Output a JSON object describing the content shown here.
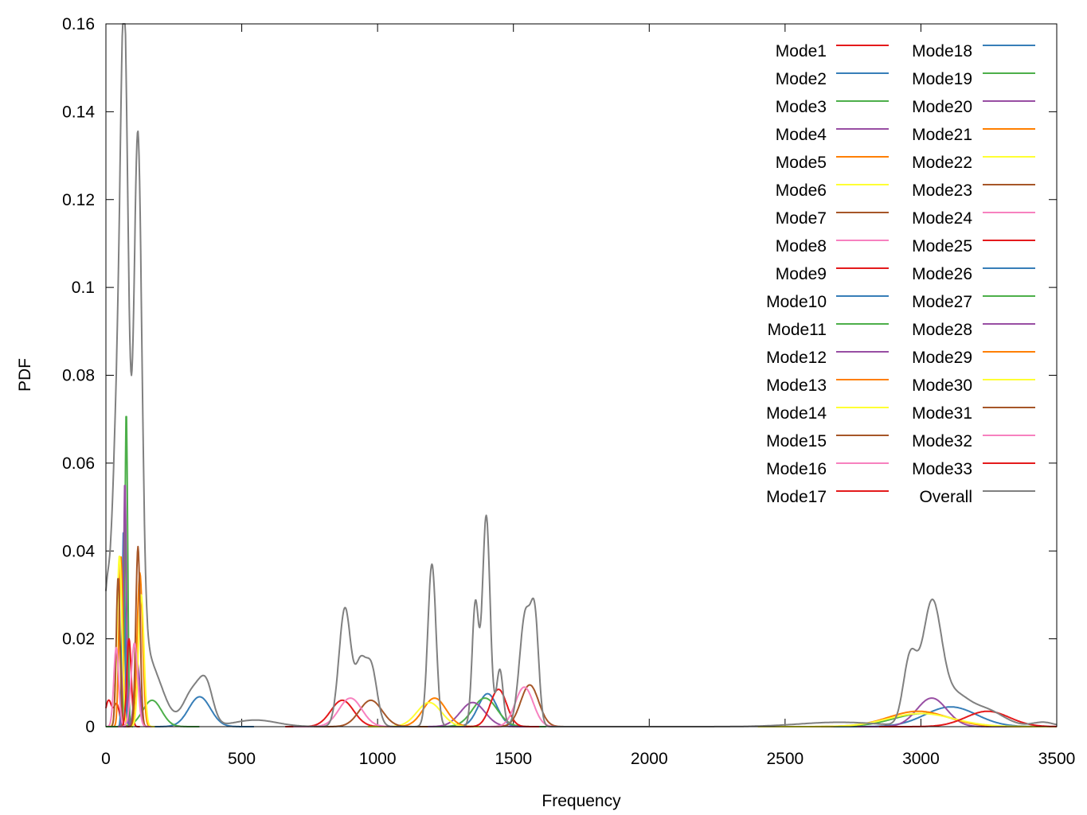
{
  "chart_data": {
    "type": "line",
    "xlabel": "Frequency",
    "ylabel": "PDF",
    "xlim": [
      0,
      3500
    ],
    "ylim": [
      0,
      0.16
    ],
    "xticks": [
      "0",
      "500",
      "1000",
      "1500",
      "2000",
      "2500",
      "3000",
      "3500"
    ],
    "yticks": [
      "0",
      "0.02",
      "0.04",
      "0.06",
      "0.08",
      "0.1",
      "0.12",
      "0.14",
      "0.16"
    ],
    "grid": false,
    "legend_position": "top-right",
    "legend_columns": 2,
    "series": [
      {
        "name": "Mode1",
        "color": "#e41a1c",
        "peaks": [
          [
            10,
            0.006,
            12
          ],
          [
            40,
            0.005,
            10
          ]
        ]
      },
      {
        "name": "Mode2",
        "color": "#377eb8",
        "peaks": [
          [
            65,
            0.045,
            5
          ]
        ]
      },
      {
        "name": "Mode3",
        "color": "#4daf4a",
        "peaks": [
          [
            75,
            0.072,
            5
          ]
        ]
      },
      {
        "name": "Mode4",
        "color": "#984ea3",
        "peaks": [
          [
            70,
            0.056,
            5
          ]
        ]
      },
      {
        "name": "Mode5",
        "color": "#ff7f00",
        "peaks": [
          [
            55,
            0.039,
            7
          ]
        ]
      },
      {
        "name": "Mode6",
        "color": "#ffff33",
        "peaks": [
          [
            50,
            0.039,
            9
          ]
        ]
      },
      {
        "name": "Mode7",
        "color": "#a65628",
        "peaks": [
          [
            45,
            0.034,
            7
          ]
        ]
      },
      {
        "name": "Mode8",
        "color": "#f781bf",
        "peaks": [
          [
            38,
            0.018,
            9
          ]
        ]
      },
      {
        "name": "Mode9",
        "color": "#e41a1c",
        "peaks": [
          [
            85,
            0.02,
            8
          ]
        ]
      },
      {
        "name": "Mode10",
        "color": "#377eb8",
        "peaks": [
          [
            345,
            0.0068,
            40
          ]
        ]
      },
      {
        "name": "Mode11",
        "color": "#4daf4a",
        "peaks": [
          [
            170,
            0.006,
            35
          ]
        ]
      },
      {
        "name": "Mode12",
        "color": "#984ea3",
        "peaks": [
          [
            115,
            0.015,
            10
          ]
        ]
      },
      {
        "name": "Mode13",
        "color": "#ff7f00",
        "peaks": [
          [
            125,
            0.035,
            10
          ]
        ]
      },
      {
        "name": "Mode14",
        "color": "#ffff33",
        "peaks": [
          [
            130,
            0.03,
            10
          ]
        ]
      },
      {
        "name": "Mode15",
        "color": "#a65628",
        "peaks": [
          [
            118,
            0.041,
            8
          ]
        ]
      },
      {
        "name": "Mode16",
        "color": "#f781bf",
        "peaks": [
          [
            105,
            0.019,
            12
          ]
        ]
      },
      {
        "name": "Mode17",
        "color": "#e41a1c",
        "peaks": [
          [
            870,
            0.006,
            42
          ]
        ]
      },
      {
        "name": "Mode18",
        "color": "#377eb8",
        "peaks": [
          [
            1405,
            0.0075,
            35
          ]
        ]
      },
      {
        "name": "Mode19",
        "color": "#4daf4a",
        "peaks": [
          [
            1395,
            0.0065,
            45
          ]
        ]
      },
      {
        "name": "Mode20",
        "color": "#984ea3",
        "peaks": [
          [
            1350,
            0.0055,
            45
          ]
        ]
      },
      {
        "name": "Mode21",
        "color": "#ff7f00",
        "peaks": [
          [
            1210,
            0.0065,
            42
          ]
        ]
      },
      {
        "name": "Mode22",
        "color": "#ffff33",
        "peaks": [
          [
            1190,
            0.0055,
            45
          ]
        ]
      },
      {
        "name": "Mode23",
        "color": "#a65628",
        "peaks": [
          [
            975,
            0.006,
            42
          ]
        ]
      },
      {
        "name": "Mode24",
        "color": "#f781bf",
        "peaks": [
          [
            900,
            0.0065,
            42
          ]
        ]
      },
      {
        "name": "Mode25",
        "color": "#e41a1c",
        "peaks": [
          [
            1445,
            0.0085,
            30
          ]
        ]
      },
      {
        "name": "Mode26",
        "color": "#377eb8",
        "peaks": [
          [
            3110,
            0.0045,
            95
          ]
        ]
      },
      {
        "name": "Mode27",
        "color": "#4daf4a",
        "peaks": [
          [
            3010,
            0.003,
            110
          ]
        ]
      },
      {
        "name": "Mode28",
        "color": "#984ea3",
        "peaks": [
          [
            3040,
            0.0065,
            55
          ]
        ]
      },
      {
        "name": "Mode29",
        "color": "#ff7f00",
        "peaks": [
          [
            2990,
            0.0035,
            110
          ]
        ]
      },
      {
        "name": "Mode30",
        "color": "#ffff33",
        "peaks": [
          [
            3000,
            0.003,
            120
          ]
        ]
      },
      {
        "name": "Mode31",
        "color": "#a65628",
        "peaks": [
          [
            1560,
            0.0095,
            33
          ]
        ]
      },
      {
        "name": "Mode32",
        "color": "#f781bf",
        "peaks": [
          [
            1540,
            0.009,
            33
          ]
        ]
      },
      {
        "name": "Mode33",
        "color": "#e41a1c",
        "peaks": [
          [
            3245,
            0.0035,
            80
          ]
        ]
      },
      {
        "name": "Overall",
        "color": "#808080",
        "peaks": [
          [
            0,
            0.022,
            12
          ],
          [
            40,
            0.06,
            20
          ],
          [
            68,
            0.12,
            14
          ],
          [
            118,
            0.105,
            14
          ],
          [
            95,
            0.03,
            35
          ],
          [
            170,
            0.012,
            45
          ],
          [
            320,
            0.008,
            35
          ],
          [
            370,
            0.008,
            25
          ],
          [
            550,
            0.0015,
            80
          ],
          [
            880,
            0.027,
            22
          ],
          [
            935,
            0.012,
            18
          ],
          [
            975,
            0.014,
            22
          ],
          [
            1200,
            0.037,
            15
          ],
          [
            1360,
            0.028,
            12
          ],
          [
            1400,
            0.048,
            14
          ],
          [
            1450,
            0.013,
            12
          ],
          [
            1545,
            0.026,
            22
          ],
          [
            1580,
            0.02,
            14
          ],
          [
            2700,
            0.001,
            150
          ],
          [
            2960,
            0.015,
            25
          ],
          [
            3040,
            0.027,
            35
          ],
          [
            3120,
            0.006,
            50
          ],
          [
            3230,
            0.004,
            70
          ],
          [
            3450,
            0.001,
            40
          ]
        ]
      }
    ]
  }
}
